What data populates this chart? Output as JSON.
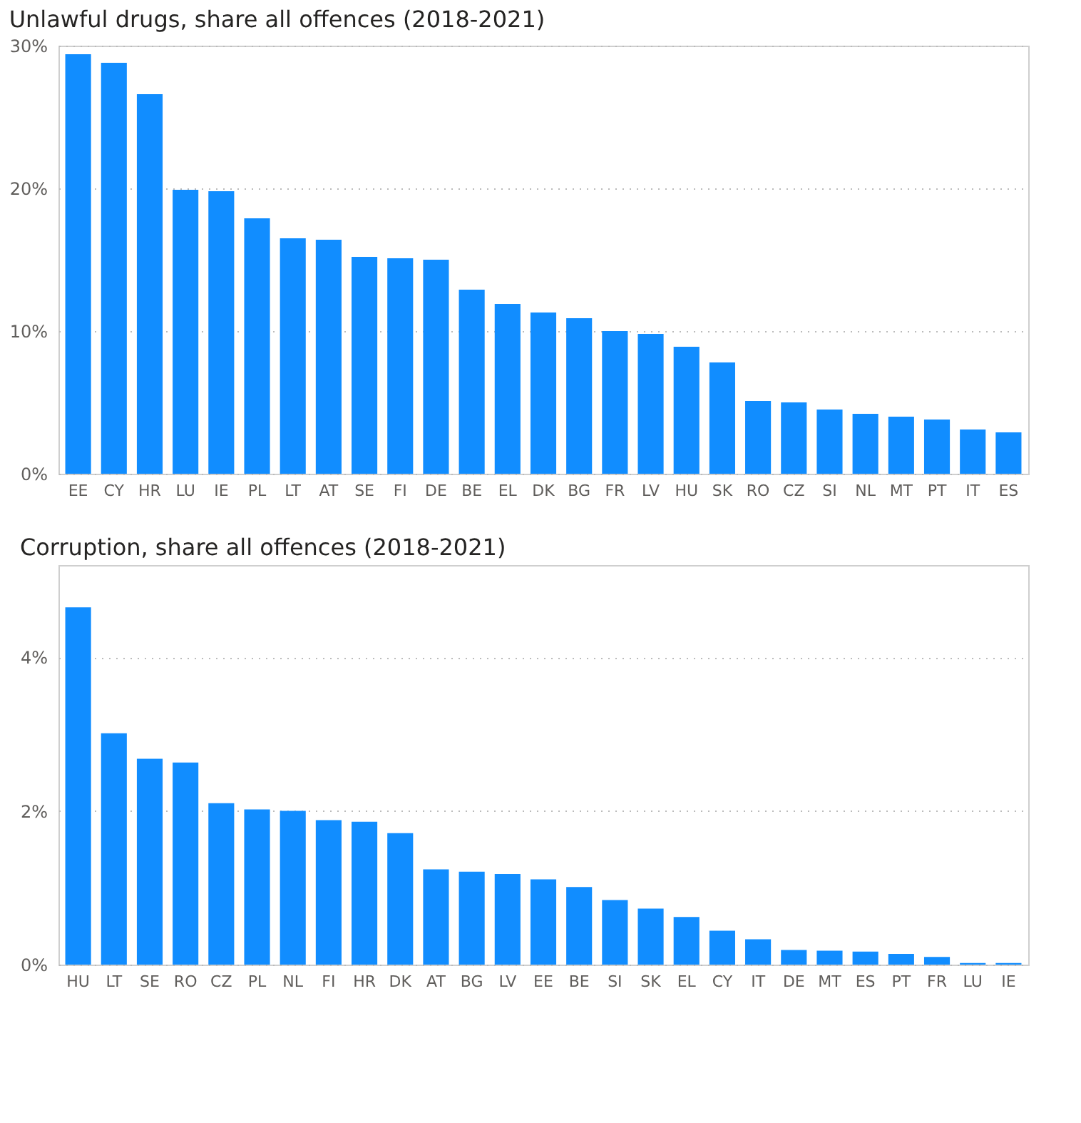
{
  "chart_data": [
    {
      "type": "bar",
      "title": "Unlawful drugs, share all offences (2018-2021)",
      "categories": [
        "EE",
        "CY",
        "HR",
        "LU",
        "IE",
        "PL",
        "LT",
        "AT",
        "SE",
        "FI",
        "DE",
        "BE",
        "EL",
        "DK",
        "BG",
        "FR",
        "LV",
        "HU",
        "SK",
        "RO",
        "CZ",
        "SI",
        "NL",
        "MT",
        "PT",
        "IT",
        "ES"
      ],
      "series": [
        {
          "color": "#118dff",
          "values": [
            29.4,
            28.8,
            26.6,
            19.9,
            19.8,
            17.9,
            16.5,
            16.4,
            15.2,
            15.1,
            15.0,
            12.9,
            11.9,
            11.3,
            10.9,
            10.0,
            9.8,
            8.9,
            7.8,
            5.1,
            5.0,
            4.5,
            4.2,
            4.0,
            3.8,
            3.1,
            2.9
          ]
        }
      ],
      "ylim": [
        0,
        30
      ],
      "yticks": [
        {
          "value": 0,
          "label": "0%"
        },
        {
          "value": 10,
          "label": "10%"
        },
        {
          "value": 20,
          "label": "20%"
        },
        {
          "value": 30,
          "label": "30%"
        }
      ],
      "grid": "y"
    },
    {
      "type": "bar",
      "title": "Corruption, share all offences (2018-2021)",
      "categories": [
        "HU",
        "LT",
        "SE",
        "RO",
        "CZ",
        "PL",
        "NL",
        "FI",
        "HR",
        "DK",
        "AT",
        "BG",
        "LV",
        "EE",
        "BE",
        "SI",
        "SK",
        "EL",
        "CY",
        "IT",
        "DE",
        "MT",
        "ES",
        "PT",
        "FR",
        "LU",
        "IE"
      ],
      "series": [
        {
          "color": "#118dff",
          "values": [
            4.65,
            3.01,
            2.68,
            2.63,
            2.1,
            2.02,
            2.0,
            1.88,
            1.86,
            1.71,
            1.24,
            1.21,
            1.18,
            1.11,
            1.01,
            0.84,
            0.73,
            0.62,
            0.44,
            0.33,
            0.19,
            0.18,
            0.17,
            0.14,
            0.1,
            0.02,
            0.02
          ]
        }
      ],
      "ylim": [
        0,
        5.2
      ],
      "yticks": [
        {
          "value": 0,
          "label": "0%"
        },
        {
          "value": 2,
          "label": "2%"
        },
        {
          "value": 4,
          "label": "4%"
        }
      ],
      "grid": "y"
    }
  ]
}
